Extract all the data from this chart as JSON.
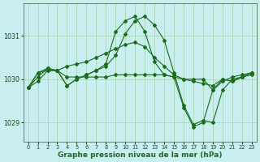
{
  "background_color": "#c8eef0",
  "grid_color": "#b0d8c0",
  "line_color": "#1a6b1a",
  "xlabel": "Graphe pression niveau de la mer (hPa)",
  "xlabel_fontsize": 6.5,
  "yticks": [
    1029,
    1030,
    1031
  ],
  "xticks": [
    0,
    1,
    2,
    3,
    4,
    5,
    6,
    7,
    8,
    9,
    10,
    11,
    12,
    13,
    14,
    15,
    16,
    17,
    18,
    19,
    20,
    21,
    22,
    23
  ],
  "xlim": [
    -0.5,
    23.5
  ],
  "ylim": [
    1028.55,
    1031.75
  ],
  "series": [
    [
      1029.8,
      1030.15,
      1030.25,
      1030.2,
      1029.85,
      1030.0,
      1030.1,
      1030.2,
      1030.35,
      1031.1,
      1031.35,
      1031.45,
      1031.1,
      1030.4,
      1030.1,
      1030.05,
      1029.35,
      1028.9,
      1029.0,
      1029.75,
      1030.0,
      1029.95,
      1030.05,
      1030.15
    ],
    [
      1029.8,
      1030.15,
      1030.2,
      1030.2,
      1029.85,
      1030.0,
      1030.1,
      1030.2,
      1030.3,
      1030.55,
      1031.05,
      1031.35,
      1031.45,
      1031.25,
      1030.9,
      1030.15,
      1029.4,
      1028.95,
      1029.05,
      1029.0,
      1029.75,
      1030.0,
      1030.05,
      1030.15
    ],
    [
      1029.8,
      1030.05,
      1030.25,
      1030.2,
      1030.05,
      1030.05,
      1030.05,
      1030.05,
      1030.05,
      1030.1,
      1030.1,
      1030.1,
      1030.1,
      1030.1,
      1030.1,
      1030.05,
      1030.0,
      1030.0,
      1030.0,
      1029.75,
      1029.95,
      1030.05,
      1030.1,
      1030.15
    ],
    [
      1029.8,
      1029.95,
      1030.2,
      1030.2,
      1030.3,
      1030.35,
      1030.4,
      1030.5,
      1030.6,
      1030.7,
      1030.8,
      1030.85,
      1030.75,
      1030.5,
      1030.3,
      1030.1,
      1030.0,
      1029.95,
      1029.9,
      1029.85,
      1030.0,
      1029.95,
      1030.05,
      1030.1
    ]
  ]
}
